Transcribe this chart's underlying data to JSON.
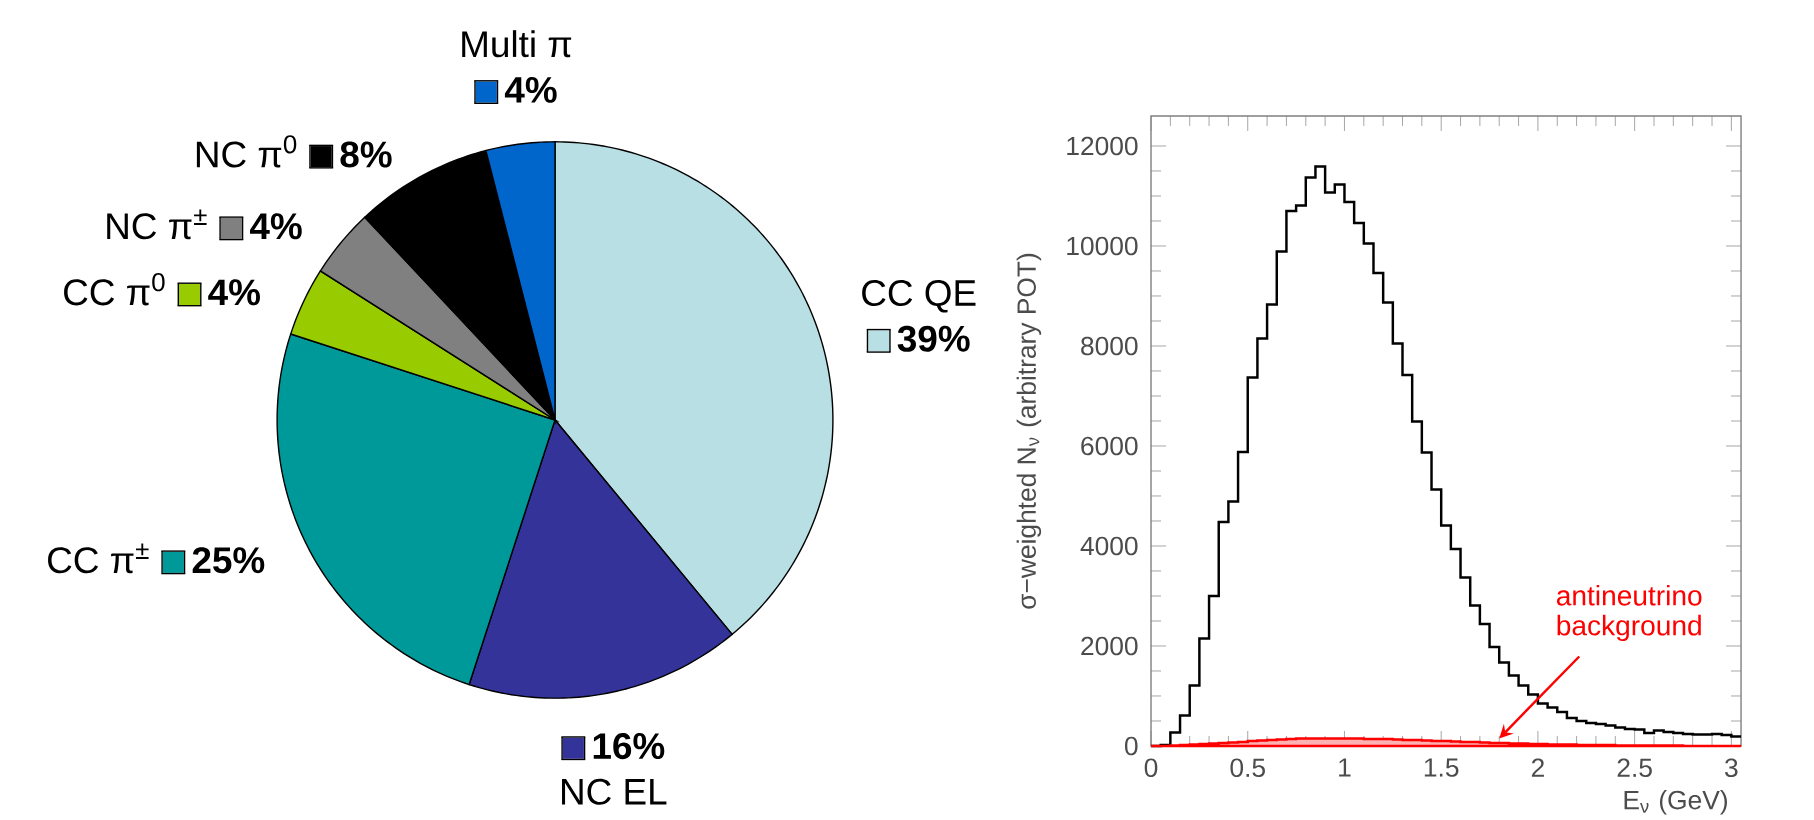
{
  "chart_data": [
    {
      "type": "pie",
      "categories": [
        "CC QE",
        "NC EL",
        "CC π$^{±}$",
        "CC π$^{0}$",
        "NC π$^{±}$",
        "NC π$^{0}$",
        "Multi π"
      ],
      "values": [
        39,
        16,
        25,
        4,
        4,
        8,
        4
      ],
      "value_labels": [
        "39%",
        "16%",
        "25%",
        "4%",
        "4%",
        "8%",
        "4%"
      ],
      "legend": "left",
      "colors": [
        "#b8e0e4",
        "#333399",
        "#009999",
        "#99cc00",
        "#808080",
        "#000000",
        "#0066cc"
      ]
    },
    {
      "type": "histogram",
      "xlabel": "E$_{ν}$ (GeV)",
      "ylabel": "σ−weighted N$_{ν}$ (arbitrary POT)",
      "bins": [
        0,
        0.05,
        0.1,
        0.15,
        0.2,
        0.25,
        0.3,
        0.35,
        0.4,
        0.45,
        0.5,
        0.55,
        0.6,
        0.65,
        0.7,
        0.75,
        0.8,
        0.85,
        0.9,
        0.95,
        1,
        1.05,
        1.1,
        1.15,
        1.2,
        1.25,
        1.3,
        1.35,
        1.4,
        1.45,
        1.5,
        1.55,
        1.6,
        1.65,
        1.7,
        1.75,
        1.8,
        1.85,
        1.9,
        1.95,
        2,
        2.05,
        2.1,
        2.15,
        2.2,
        2.25,
        2.3,
        2.35,
        2.4,
        2.45,
        2.5,
        2.55,
        2.6,
        2.65,
        2.7,
        2.75,
        2.8,
        2.85,
        2.9,
        2.95,
        3,
        3.05
      ],
      "series": [
        {
          "color": "#000000",
          "values": [
            0,
            20,
            270,
            610,
            1210,
            2150,
            3000,
            4480,
            4890,
            5880,
            7370,
            8150,
            8830,
            9890,
            10700,
            10810,
            11370,
            11590,
            11070,
            11230,
            10880,
            10460,
            10050,
            9460,
            8870,
            8050,
            7420,
            6490,
            5870,
            5130,
            4410,
            3940,
            3370,
            2810,
            2440,
            1980,
            1670,
            1410,
            1210,
            1030,
            850,
            770,
            680,
            560,
            500,
            460,
            440,
            410,
            370,
            340,
            330,
            260,
            310,
            280,
            260,
            240,
            230,
            230,
            240,
            220,
            190
          ]
        },
        {
          "color": "#ff0000",
          "values": [
            0,
            0,
            10,
            20,
            30,
            40,
            50,
            60,
            70,
            80,
            100,
            110,
            120,
            130,
            140,
            150,
            150,
            150,
            150,
            150,
            150,
            150,
            140,
            140,
            140,
            130,
            120,
            120,
            110,
            100,
            100,
            90,
            80,
            80,
            70,
            60,
            60,
            50,
            50,
            40,
            40,
            30,
            30,
            30,
            20,
            20,
            20,
            20,
            10,
            10,
            10,
            10,
            10,
            10,
            10,
            0,
            0,
            0,
            0,
            0,
            0
          ]
        }
      ],
      "xlim": [
        0,
        3.05
      ],
      "ylim": [
        0,
        12600
      ],
      "xticks": [
        0,
        0.5,
        1,
        1.5,
        2,
        2.5,
        3
      ],
      "yticks": [
        0,
        2000,
        4000,
        6000,
        8000,
        10000,
        12000
      ],
      "annotations": [
        {
          "text": "antineutrino background",
          "x": 1.8,
          "y": 150
        }
      ]
    }
  ]
}
